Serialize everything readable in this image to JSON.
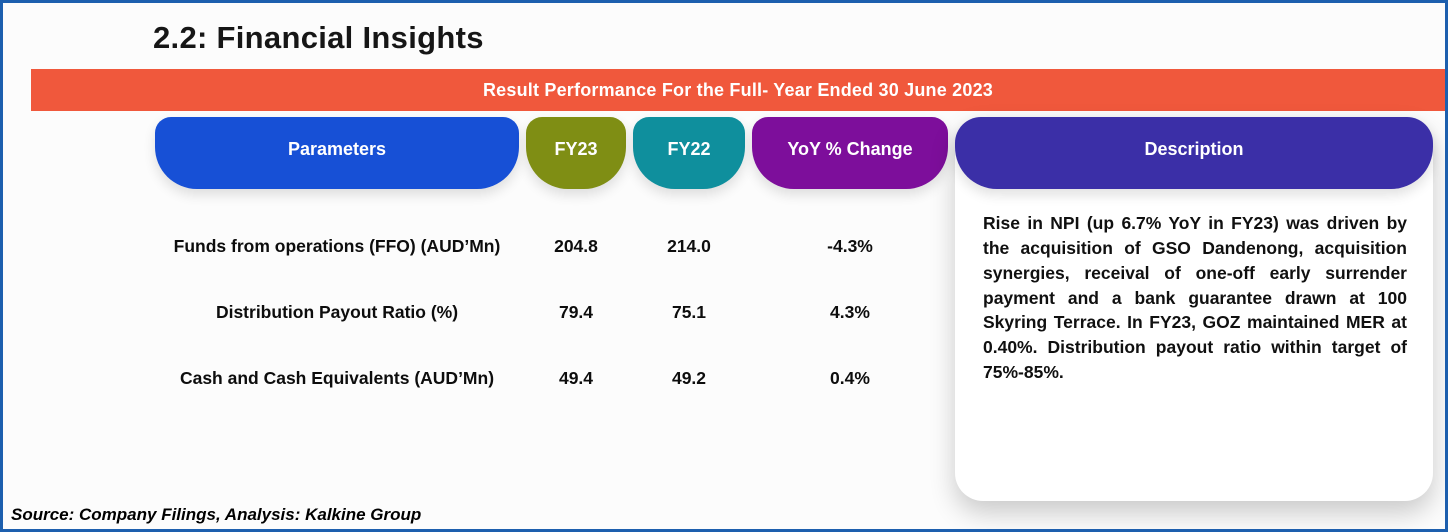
{
  "page": {
    "title": "2.2: Financial Insights",
    "banner": "Result Performance For the Full- Year Ended 30 June 2023",
    "source": "Source: Company Filings, Analysis: Kalkine Group"
  },
  "table": {
    "headers": [
      {
        "label": "Parameters",
        "color": "#1750d6"
      },
      {
        "label": "FY23",
        "color": "#7f8e14"
      },
      {
        "label": "FY22",
        "color": "#0f8f9d"
      },
      {
        "label": "YoY % Change",
        "color": "#7d0e9b"
      },
      {
        "label": "Description",
        "color": "#3b2fa7"
      }
    ],
    "rows": [
      {
        "parameter": "Funds from operations (FFO) (AUD’Mn)",
        "fy23": "204.8",
        "fy22": "214.0",
        "yoy": "-4.3%"
      },
      {
        "parameter": "Distribution Payout Ratio (%)",
        "fy23": "79.4",
        "fy22": "75.1",
        "yoy": "4.3%"
      },
      {
        "parameter": "Cash and Cash Equivalents (AUD’Mn)",
        "fy23": "49.4",
        "fy22": "49.2",
        "yoy": "0.4%"
      }
    ],
    "description": "Rise in NPI (up 6.7% YoY in FY23) was driven by the acquisition of GSO Dandenong, acquisition synergies, receival of one-off early surrender payment and a bank guarantee drawn at 100 Skyring Terrace. In FY23, GOZ maintained MER at 0.40%. Distribution payout ratio within target of 75%-85%."
  },
  "colors": {
    "frame_border": "#1d5fae",
    "banner": "#f0583c",
    "text": "#0d0d0d"
  }
}
